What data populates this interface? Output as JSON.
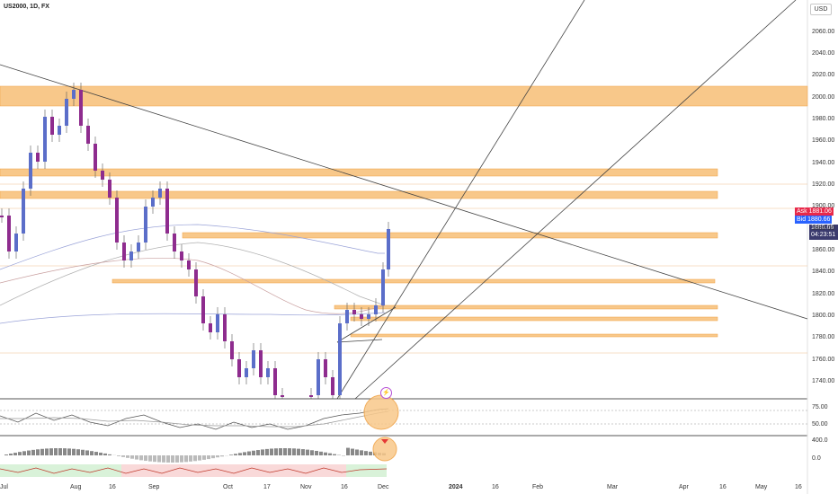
{
  "header": {
    "symbol": "US2000, 1D, FX",
    "currency": "USD"
  },
  "price_tags": {
    "ask_label": "Ask",
    "ask_value": "1881.06",
    "bid_label": "Bid",
    "bid_value": "1880.66",
    "last_value": "1880.66",
    "countdown": "04:23:51"
  },
  "y_axis": [
    "2060.00",
    "2040.00",
    "2020.00",
    "2000.00",
    "1980.00",
    "1960.00",
    "1940.00",
    "1920.00",
    "1900.00",
    "1880.00",
    "1860.00",
    "1840.00",
    "1820.00",
    "1800.00",
    "1780.00",
    "1760.00",
    "1740.00"
  ],
  "indicator1_axis": [
    "75.00",
    "50.00"
  ],
  "indicator2_axis": [
    "400.0",
    "0.0"
  ],
  "x_axis": [
    "Jul",
    "Aug",
    "16",
    "Sep",
    "Oct",
    "17",
    "Nov",
    "16",
    "Dec",
    "2024",
    "16",
    "Feb",
    "Mar",
    "Apr",
    "16",
    "May",
    "16"
  ],
  "colors": {
    "zone": "#f8c88a",
    "up_candle": "#5b6ec9",
    "down_candle": "#8e2c8e",
    "line": "#555555"
  },
  "icons": {
    "lightning": "lightning-icon"
  }
}
